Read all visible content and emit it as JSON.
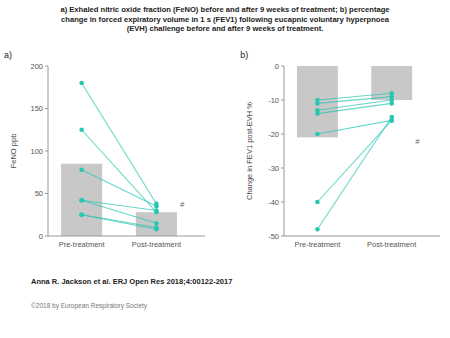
{
  "chart_data": [
    {
      "type": "bar",
      "title": "a) Exhaled nitric oxide fraction (FeNO) before and after 9 weeks of treatment; b) percentage\nchange in forced expiratory volume in 1 s (FEV1) following eucapnic voluntary hyperpnoea\n(EVH) challenge before and after 9 weeks of treatment.",
      "subtitle": "a)",
      "y_label": "FeNO ppb",
      "categories": [
        "Pre-treatment",
        "Post-treatment"
      ],
      "ylim": [
        0,
        200
      ],
      "yticks": [
        0,
        50,
        100,
        150,
        200
      ],
      "grid": false,
      "series": [
        {
          "type": "bar",
          "color": "#c8c8c8",
          "values": [
            85,
            28
          ]
        },
        {
          "type": "line",
          "color": "#26c6b0",
          "marker": "circle",
          "values": [
            78,
            35
          ]
        },
        {
          "type": "line",
          "color": "#26c6b0",
          "marker": "circle",
          "values": [
            42,
            30
          ]
        },
        {
          "type": "line",
          "color": "#26c6b0",
          "marker": "circle",
          "values": [
            42,
            15
          ]
        },
        {
          "type": "line",
          "color": "#26c6b0",
          "marker": "circle",
          "values": [
            25,
            10
          ]
        },
        {
          "type": "line",
          "color": "#26c6b0",
          "marker": "circle",
          "values": [
            25,
            8
          ]
        },
        {
          "type": "line",
          "color": "#26c6b0",
          "marker": "circle",
          "values": [
            125,
            28
          ]
        },
        {
          "type": "line",
          "color": "#26c6b0",
          "marker": "circle",
          "values": [
            180,
            38
          ]
        }
      ],
      "annotations": [
        {
          "text": "#",
          "y": 38
        },
        {
          "text": "Anna R. Jackson et al. ERJ Open Res 2018;4:00122-2017"
        },
        {
          "text": "©2018 by European Respiratory Society"
        }
      ]
    },
    {
      "type": "bar",
      "subtitle": "b)",
      "y_label": "Change in FEV1 post-EVH %",
      "categories": [
        "Pre-treatment",
        "Post-treatment"
      ],
      "ylim": [
        -50,
        0
      ],
      "yticks": [
        0,
        -10,
        -20,
        -30,
        -40,
        -50
      ],
      "grid": false,
      "series": [
        {
          "type": "bar",
          "color": "#c8c8c8",
          "values": [
            -21,
            -10
          ]
        },
        {
          "type": "line",
          "color": "#26c6b0",
          "marker": "circle",
          "values": [
            -10,
            -8
          ]
        },
        {
          "type": "line",
          "color": "#26c6b0",
          "marker": "circle",
          "values": [
            -11,
            -9
          ]
        },
        {
          "type": "line",
          "color": "#26c6b0",
          "marker": "circle",
          "values": [
            -13,
            -10
          ]
        },
        {
          "type": "line",
          "color": "#26c6b0",
          "marker": "circle",
          "values": [
            -14,
            -11
          ]
        },
        {
          "type": "line",
          "color": "#26c6b0",
          "marker": "circle",
          "values": [
            -20,
            -16
          ]
        },
        {
          "type": "line",
          "color": "#26c6b0",
          "marker": "circle",
          "values": [
            -40,
            -16
          ]
        },
        {
          "type": "line",
          "color": "#26c6b0",
          "marker": "circle",
          "values": [
            -48,
            -15
          ]
        }
      ],
      "annotations": [
        {
          "text": "#",
          "y": -22
        }
      ]
    }
  ]
}
